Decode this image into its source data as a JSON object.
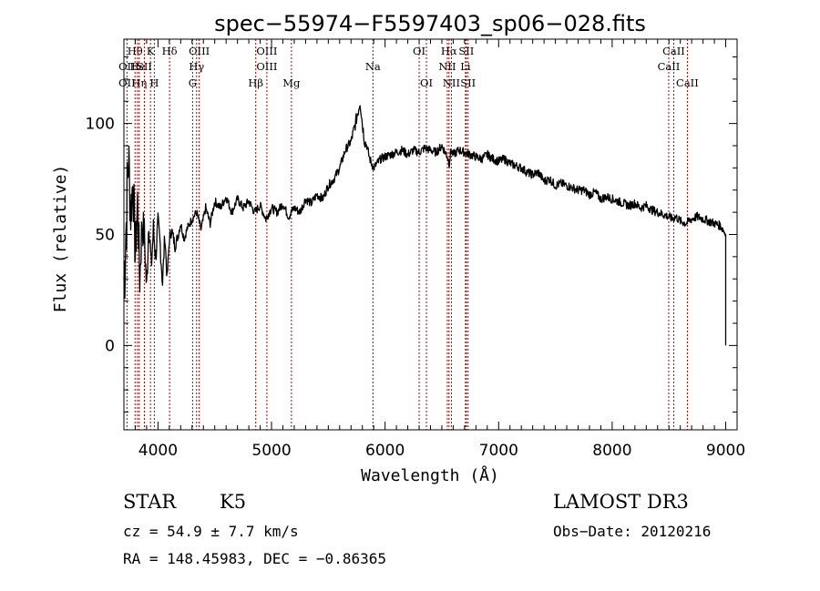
{
  "chart_data": {
    "type": "line",
    "title": "spec−55974−F5597403_sp06−028.fits",
    "xlabel": "Wavelength (Å)",
    "ylabel": "Flux (relative)",
    "xlim": [
      3700,
      9100
    ],
    "ylim": [
      -38,
      138
    ],
    "xticks": [
      4000,
      5000,
      6000,
      7000,
      8000,
      9000
    ],
    "yticks": [
      0,
      50,
      100
    ],
    "series": [
      {
        "name": "flux",
        "x": [
          3700,
          3720,
          3740,
          3760,
          3780,
          3800,
          3820,
          3840,
          3860,
          3880,
          3900,
          3920,
          3940,
          3960,
          3980,
          4000,
          4020,
          4040,
          4060,
          4080,
          4100,
          4120,
          4150,
          4180,
          4200,
          4230,
          4260,
          4300,
          4340,
          4380,
          4420,
          4460,
          4500,
          4550,
          4600,
          4650,
          4700,
          4750,
          4800,
          4850,
          4900,
          4950,
          5000,
          5050,
          5100,
          5150,
          5200,
          5250,
          5300,
          5350,
          5400,
          5450,
          5500,
          5550,
          5600,
          5650,
          5700,
          5730,
          5760,
          5780,
          5800,
          5820,
          5840,
          5860,
          5880,
          5900,
          5930,
          5960,
          6000,
          6050,
          6100,
          6150,
          6200,
          6250,
          6300,
          6350,
          6400,
          6450,
          6500,
          6550,
          6565,
          6580,
          6600,
          6650,
          6700,
          6750,
          6800,
          6850,
          6900,
          6950,
          7000,
          7050,
          7100,
          7150,
          7200,
          7250,
          7300,
          7350,
          7400,
          7450,
          7500,
          7550,
          7600,
          7650,
          7700,
          7750,
          7800,
          7850,
          7900,
          7950,
          8000,
          8050,
          8100,
          8150,
          8200,
          8250,
          8300,
          8350,
          8400,
          8450,
          8500,
          8530,
          8560,
          8600,
          8650,
          8700,
          8750,
          8800,
          8850,
          8900,
          8950,
          8980,
          9000
        ],
        "y": [
          30,
          55,
          85,
          60,
          75,
          40,
          65,
          30,
          55,
          50,
          25,
          58,
          35,
          52,
          40,
          55,
          45,
          28,
          50,
          30,
          48,
          52,
          45,
          50,
          55,
          48,
          53,
          57,
          60,
          52,
          62,
          55,
          65,
          62,
          67,
          60,
          66,
          62,
          65,
          60,
          63,
          57,
          62,
          60,
          64,
          58,
          62,
          60,
          66,
          64,
          68,
          66,
          72,
          75,
          80,
          88,
          92,
          98,
          105,
          110,
          100,
          92,
          90,
          85,
          82,
          80,
          82,
          84,
          85,
          86,
          87,
          88,
          86,
          88,
          87,
          89,
          88,
          87,
          90,
          85,
          82,
          88,
          86,
          88,
          87,
          86,
          85,
          84,
          86,
          84,
          83,
          84,
          82,
          81,
          80,
          78,
          77,
          78,
          74,
          75,
          72,
          73,
          72,
          71,
          70,
          70,
          68,
          69,
          66,
          67,
          66,
          65,
          64,
          63,
          64,
          62,
          63,
          61,
          60,
          59,
          58,
          57,
          58,
          56,
          55,
          57,
          58,
          57,
          56,
          55,
          54,
          52,
          50
        ],
        "noise": [
          26,
          22,
          18,
          15,
          14,
          12,
          12,
          11,
          10,
          9,
          8,
          8,
          7,
          7,
          6,
          5,
          5,
          4,
          4,
          3,
          3,
          3,
          3,
          2,
          2,
          2,
          2,
          2,
          2,
          2,
          2,
          2,
          2,
          2,
          2,
          2,
          2,
          2,
          2,
          2,
          2,
          2,
          2,
          2,
          2,
          2,
          2,
          2,
          2,
          2,
          2,
          2,
          2,
          2,
          2,
          2,
          2,
          3,
          3,
          3,
          3,
          3,
          2,
          2,
          2,
          2,
          2,
          2,
          2,
          2,
          2,
          2,
          2,
          2,
          2,
          2,
          2,
          2,
          2,
          2,
          2,
          2,
          2,
          2,
          2,
          2,
          2,
          2,
          2,
          2,
          2,
          2,
          2,
          2,
          2,
          2,
          2,
          2,
          2,
          2,
          2,
          2,
          2,
          2,
          2,
          2,
          2,
          2,
          2,
          2,
          2,
          2,
          2,
          2,
          2,
          2,
          2,
          2,
          2,
          2,
          2,
          2,
          2,
          2,
          2,
          2,
          2,
          2,
          2,
          2,
          2,
          2,
          2
        ]
      }
    ],
    "final_drop": {
      "x": 9000,
      "y": 0
    },
    "spectral_lines": [
      {
        "name": "Hθ",
        "x": 3798,
        "row": 1
      },
      {
        "name": "OII",
        "x": 3727,
        "row": 2
      },
      {
        "name": "OII",
        "x": 3727,
        "row": 3
      },
      {
        "name": "He",
        "x": 3820,
        "row": 2
      },
      {
        "name": "Hη",
        "x": 3835,
        "row": 3
      },
      {
        "name": "K",
        "x": 3934,
        "row": 1
      },
      {
        "name": "SII",
        "x": 3880,
        "row": 2
      },
      {
        "name": "H",
        "x": 3968,
        "row": 3
      },
      {
        "name": "Hδ",
        "x": 4102,
        "row": 1
      },
      {
        "name": "OIII",
        "x": 4363,
        "row": 1
      },
      {
        "name": "Hγ",
        "x": 4340,
        "row": 2
      },
      {
        "name": "G",
        "x": 4305,
        "row": 3
      },
      {
        "name": "OIII",
        "x": 4959,
        "row": 1
      },
      {
        "name": "OIII",
        "x": 4959,
        "row": 2
      },
      {
        "name": "Hβ",
        "x": 4861,
        "row": 3
      },
      {
        "name": "Mg",
        "x": 5175,
        "row": 3
      },
      {
        "name": "Na",
        "x": 5893,
        "row": 2
      },
      {
        "name": "OI",
        "x": 6300,
        "row": 1
      },
      {
        "name": "OI",
        "x": 6364,
        "row": 3
      },
      {
        "name": "Hα",
        "x": 6563,
        "row": 1
      },
      {
        "name": "SII",
        "x": 6716,
        "row": 1
      },
      {
        "name": "NII",
        "x": 6548,
        "row": 2
      },
      {
        "name": "Li",
        "x": 6708,
        "row": 2
      },
      {
        "name": "NII",
        "x": 6584,
        "row": 3
      },
      {
        "name": "SII",
        "x": 6731,
        "row": 3
      },
      {
        "name": "CaII",
        "x": 8542,
        "row": 1
      },
      {
        "name": "CaII",
        "x": 8498,
        "row": 2
      },
      {
        "name": "CaII",
        "x": 8662,
        "row": 3
      }
    ],
    "line_color": "#b00000"
  },
  "info": {
    "class": "STAR",
    "subclass": "K5",
    "survey": "LAMOST DR3",
    "cz": "cz = 54.9 ± 7.7 km/s",
    "obs_date": "Obs−Date: 20120216",
    "radec": "RA = 148.45983, DEC =  −0.86365"
  }
}
